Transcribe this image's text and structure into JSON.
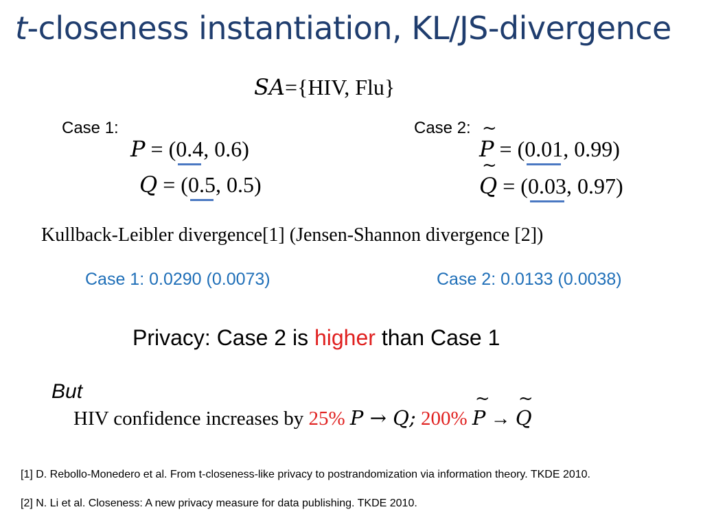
{
  "title": {
    "italic": "t",
    "rest": "-closeness instantiation, KL/JS-divergence"
  },
  "sa_label": "SA",
  "sa_rest": "={HIV, Flu}",
  "case1": {
    "label": "Case 1:",
    "p_symbol": "P",
    "p_eq": "= (",
    "p_first": "0.4",
    "p_rest": ", 0.6)",
    "q_symbol": "Q",
    "q_eq": "= (",
    "q_first": "0.5",
    "q_rest": ", 0.5)"
  },
  "case2": {
    "label": "Case 2:",
    "p_symbol": "P",
    "p_eq": "= (",
    "p_first": "0.01",
    "p_rest": ", 0.99)",
    "q_symbol": "Q",
    "q_eq": "= (",
    "q_first": "0.03",
    "q_rest": ", 0.97)"
  },
  "divergence_line": "Kullback-Leibler divergence[1]  (Jensen-Shannon divergence [2])",
  "result1": "Case 1: 0.0290 (0.0073)",
  "result2": "Case 2: 0.0133 (0.0038)",
  "privacy": {
    "before": "Privacy: Case 2 is ",
    "highlight": "higher",
    "after": " than Case 1"
  },
  "but": "But",
  "hiv": {
    "text": "HIV confidence increases by ",
    "pct1": "25%",
    "pq1": "P → Q;",
    "pct2": "200%",
    "p2": "P",
    "arrow": "→",
    "q2": "Q"
  },
  "references": [
    "[1] D. Rebollo-Monedero et al. From t-closeness-like privacy to postrandomization via information theory. TKDE 2010.",
    "[2] N. Li et al. Closeness: A new privacy measure for data publishing. TKDE 2010."
  ],
  "colors": {
    "title": "#1F3D6E",
    "result": "#1F6FB8",
    "highlight": "#E0201F",
    "underline": "#4A78C2"
  }
}
